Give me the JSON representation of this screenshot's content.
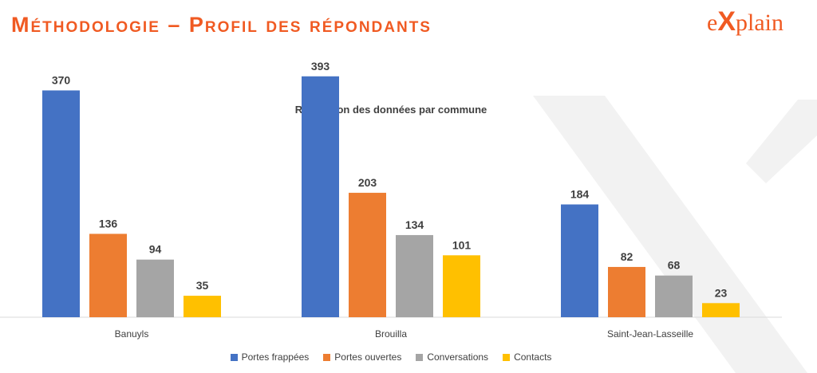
{
  "header": {
    "title": "Méthodologie – Profil des répondants",
    "logo_text": "eXplain",
    "logo_prefix": "e",
    "logo_x": "X",
    "logo_suffix": "plain"
  },
  "colors": {
    "accent": "#f05a22",
    "watermark": "#f2f2f2"
  },
  "chart_data": {
    "type": "bar",
    "title": "Répartition des données par commune",
    "xlabel": "",
    "ylabel": "",
    "ylim": [
      0,
      420
    ],
    "grid": false,
    "legend_position": "bottom",
    "categories": [
      "Banuyls",
      "Brouilla",
      "Saint-Jean-Lasseille"
    ],
    "series": [
      {
        "name": "Portes frappées",
        "color": "#4472c4",
        "values": [
          370,
          393,
          184
        ]
      },
      {
        "name": "Portes ouvertes",
        "color": "#ed7d31",
        "values": [
          136,
          203,
          82
        ]
      },
      {
        "name": "Conversations",
        "color": "#a5a5a5",
        "values": [
          94,
          134,
          68
        ]
      },
      {
        "name": "Contacts",
        "color": "#ffc000",
        "values": [
          35,
          101,
          23
        ]
      }
    ]
  }
}
